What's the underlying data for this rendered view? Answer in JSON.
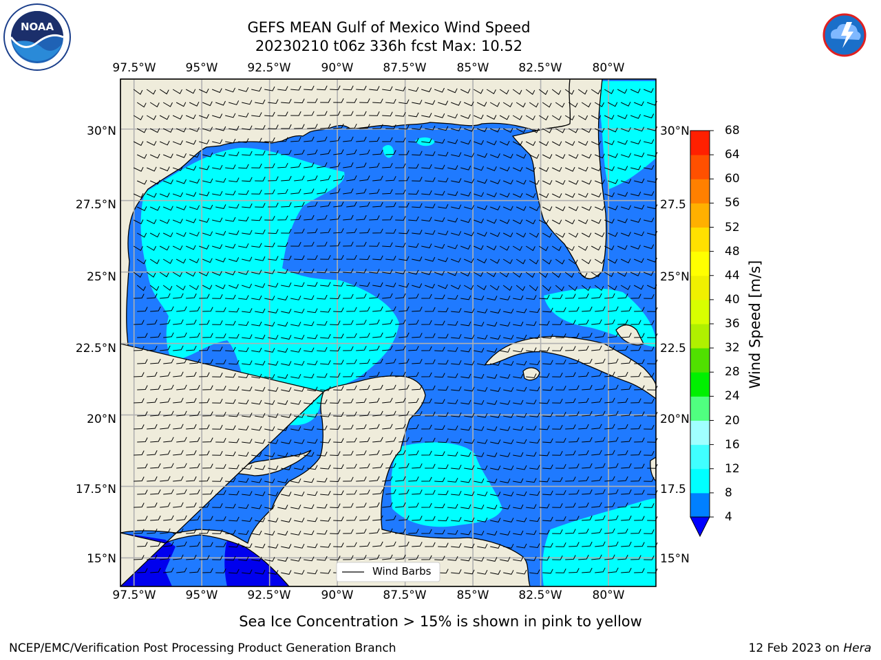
{
  "title": {
    "line1": "GEFS MEAN Gulf of Mexico Wind Speed",
    "line2": "20230210 t06z 336h fcst   Max: 10.52"
  },
  "logos": {
    "left": "NOAA",
    "right": "National Weather Service"
  },
  "map": {
    "lon_range": [
      -98.0,
      -78.25
    ],
    "lat_range": [
      14.0,
      31.75
    ],
    "lon_ticks": [
      "97.5°W",
      "95°W",
      "92.5°W",
      "90°W",
      "87.5°W",
      "85°W",
      "82.5°W",
      "80°W"
    ],
    "lat_ticks": [
      "30°N",
      "27.5°N",
      "25°N",
      "22.5°N",
      "20°N",
      "17.5°N",
      "15°N"
    ],
    "right_lat_ticks": [
      "30°N",
      "27.5",
      "25°N",
      "22.5",
      "20°N",
      "17.5",
      "15°N"
    ],
    "gridlines": true,
    "land_color": "#efecdb",
    "legend_label": "Wind Barbs"
  },
  "colorbar": {
    "label": "Wind Speed [m/s]",
    "ticks": [
      "68",
      "64",
      "60",
      "56",
      "52",
      "48",
      "44",
      "40",
      "36",
      "32",
      "28",
      "24",
      "20",
      "16",
      "12",
      "8",
      "4"
    ],
    "levels": [
      4,
      8,
      12,
      16,
      20,
      24,
      28,
      32,
      36,
      40,
      44,
      48,
      52,
      56,
      60,
      64,
      68
    ],
    "colors": [
      "#0080ff",
      "#00ffff",
      "#40ffff",
      "#a0ffff",
      "#50ff80",
      "#00f000",
      "#50e000",
      "#b0f000",
      "#d8ff00",
      "#f0f000",
      "#ffff00",
      "#ffe000",
      "#ffb000",
      "#ff8000",
      "#ff5000",
      "#ff2000"
    ],
    "under_color": "#0000ff"
  },
  "caption": "Sea Ice Concentration > 15% is shown in pink to yellow",
  "footer": {
    "left": "NCEP/EMC/Verification Post Processing Product Generation Branch",
    "right_prefix": "12 Feb 2023 on ",
    "right_host": "Hera"
  }
}
